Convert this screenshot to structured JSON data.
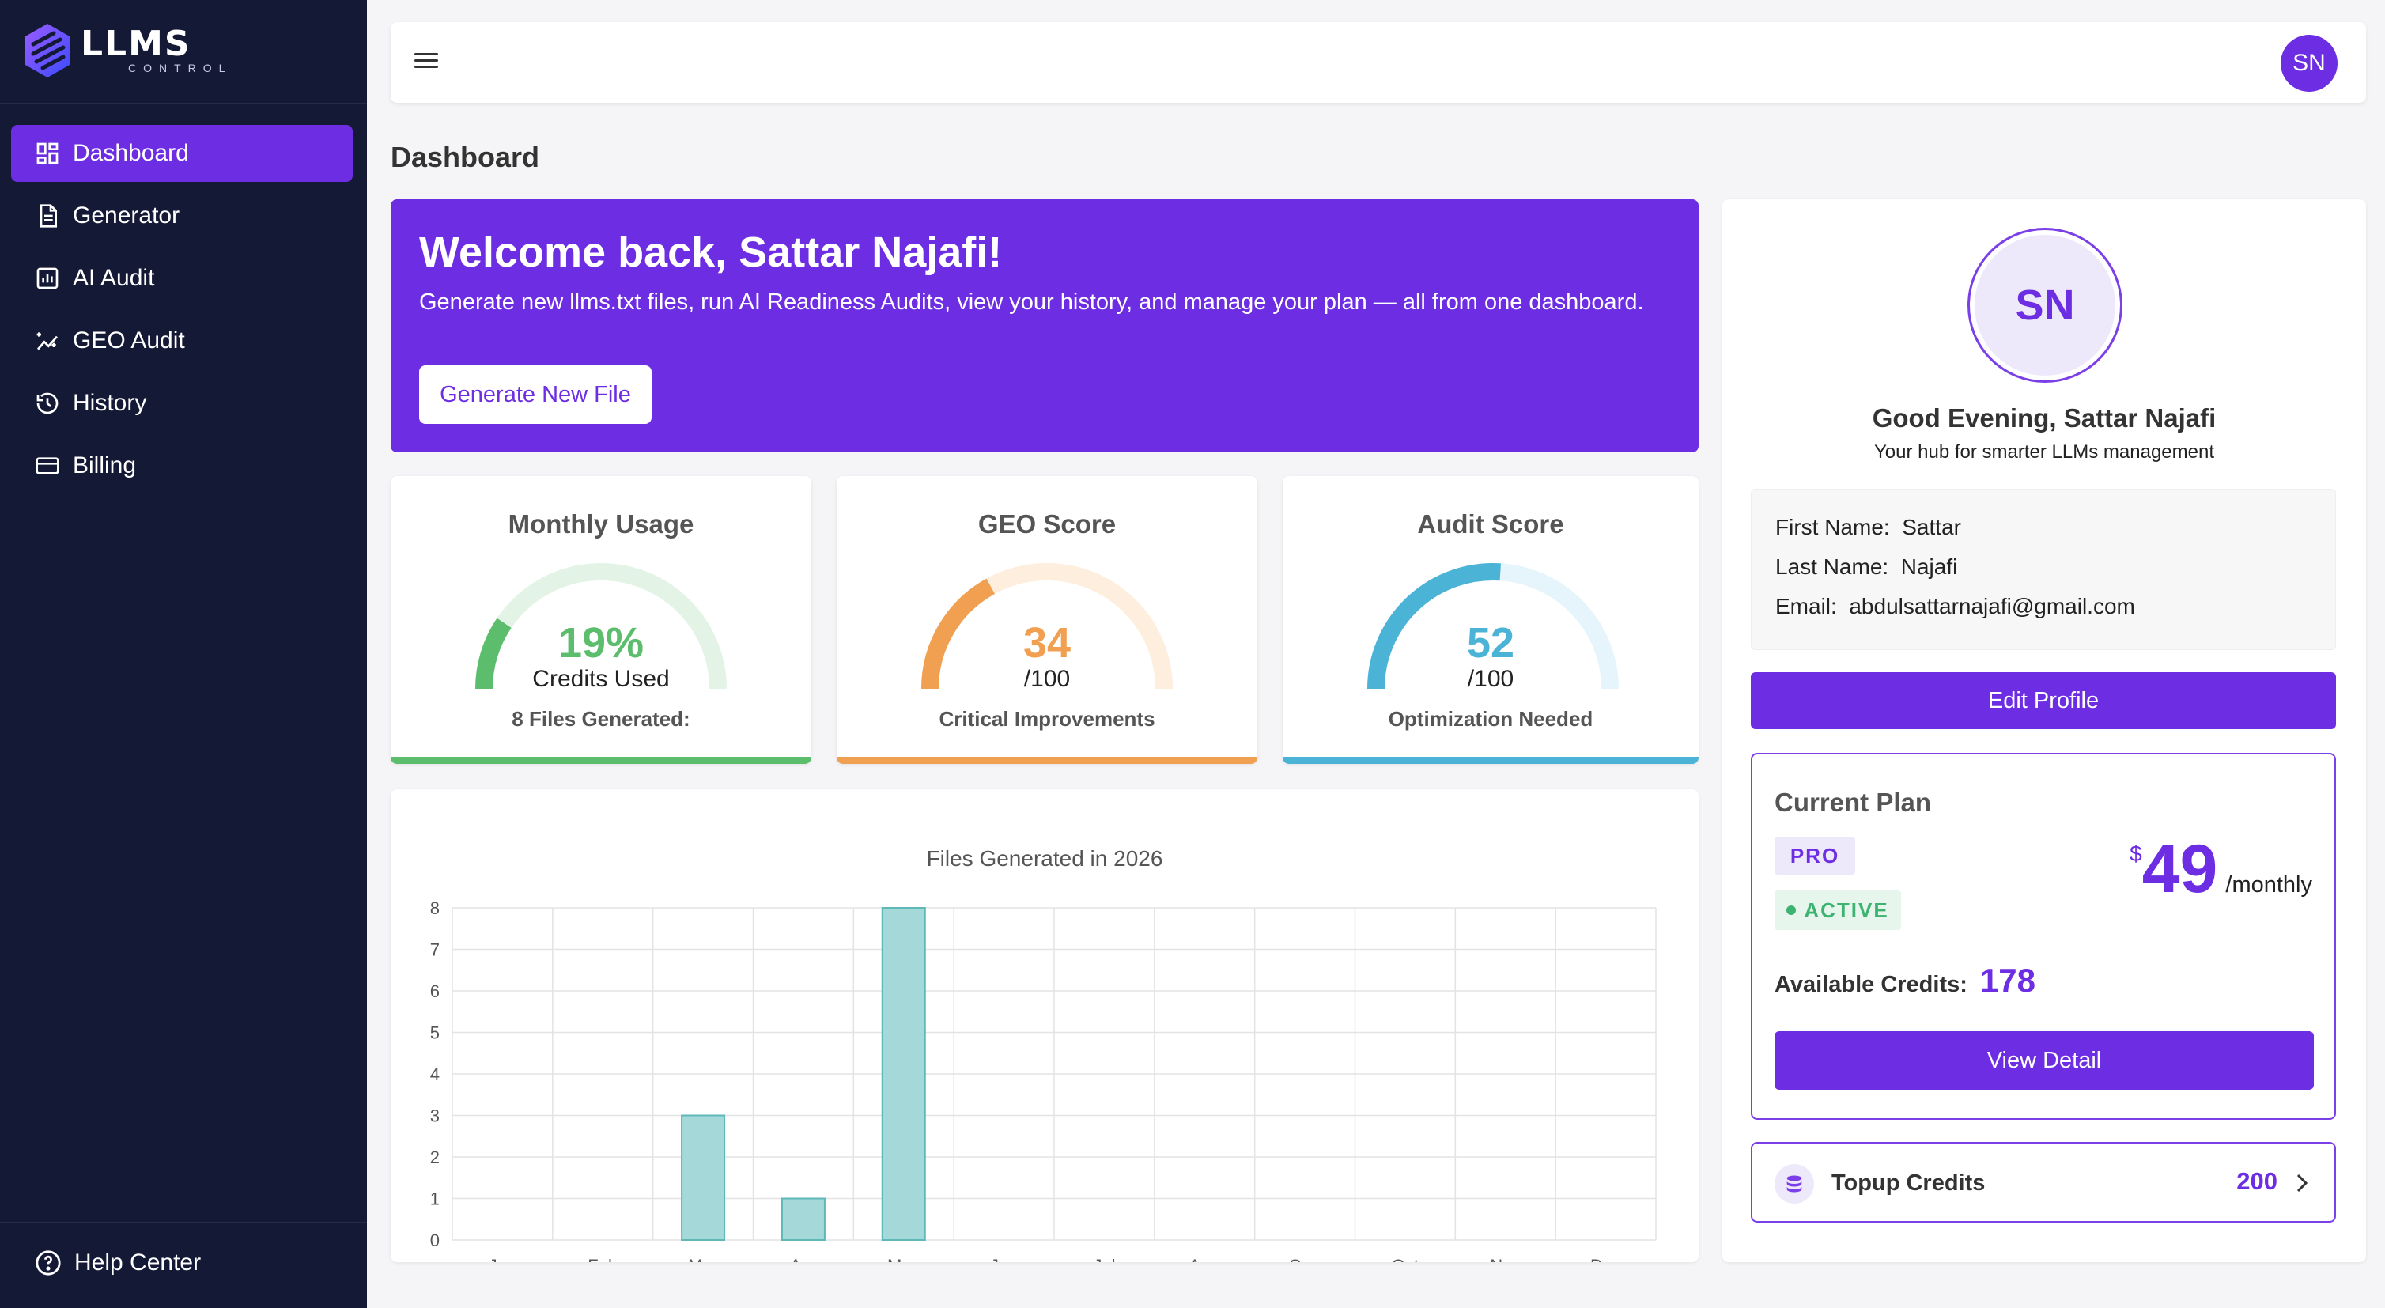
{
  "app": {
    "logo_title": "LLMS",
    "logo_subtitle": "CONTROL"
  },
  "sidebar": {
    "items": [
      {
        "label": "Dashboard",
        "icon": "dashboard-icon",
        "active": true
      },
      {
        "label": "Generator",
        "icon": "document-icon",
        "active": false
      },
      {
        "label": "AI Audit",
        "icon": "chart-icon",
        "active": false
      },
      {
        "label": "GEO Audit",
        "icon": "sparkle-chart-icon",
        "active": false
      },
      {
        "label": "History",
        "icon": "history-icon",
        "active": false
      },
      {
        "label": "Billing",
        "icon": "card-icon",
        "active": false
      }
    ],
    "help_label": "Help Center"
  },
  "topbar": {
    "avatar_initials": "SN"
  },
  "page": {
    "title": "Dashboard"
  },
  "welcome": {
    "heading": "Welcome back, Sattar Najafi!",
    "text": "Generate new llms.txt files, run AI Readiness Audits, view your history, and manage your plan — all from one dashboard.",
    "button": "Generate New File"
  },
  "scores": [
    {
      "title": "Monthly Usage",
      "value": "19%",
      "sub": "Credits Used",
      "foot": "8 Files Generated:",
      "percent": 19,
      "color": "#5cbd6c",
      "track": "#e3f4e6"
    },
    {
      "title": "GEO Score",
      "value": "34",
      "sub": "/100",
      "foot": "Critical Improvements",
      "percent": 34,
      "color": "#f0a050",
      "track": "#fdeede"
    },
    {
      "title": "Audit Score",
      "value": "52",
      "sub": "/100",
      "foot": "Optimization Needed",
      "percent": 52,
      "color": "#4ab3d6",
      "track": "#e6f5fb"
    }
  ],
  "chart_data": {
    "type": "bar",
    "title": "Files Generated in 2026",
    "categories": [
      "Jan",
      "Feb",
      "Mar",
      "Apr",
      "May",
      "Jun",
      "Jul",
      "Aug",
      "Sep",
      "Oct",
      "Nov",
      "Dec"
    ],
    "values": [
      0,
      0,
      3,
      1,
      8,
      0,
      0,
      0,
      0,
      0,
      0,
      0
    ],
    "ylim": [
      0,
      8
    ],
    "yticks": [
      "0",
      "1",
      "2",
      "3",
      "4",
      "5",
      "6",
      "7",
      "8"
    ],
    "bar_color": "#a5d8d8",
    "bar_border": "#5fb8b8",
    "grid": true
  },
  "profile": {
    "initials": "SN",
    "greeting": "Good Evening, Sattar Najafi",
    "tagline": "Your hub for smarter LLMs management",
    "first_name_label": "First Name:",
    "first_name": "Sattar",
    "last_name_label": "Last Name:",
    "last_name": "Najafi",
    "email_label": "Email:",
    "email": "abdulsattarnajafi@gmail.com",
    "edit_button": "Edit Profile"
  },
  "plan": {
    "title": "Current Plan",
    "tier": "PRO",
    "status": "ACTIVE",
    "currency": "$",
    "price": "49",
    "period": "/monthly",
    "credits_label": "Available Credits:",
    "credits": "178",
    "view_button": "View Detail"
  },
  "topup": {
    "label": "Topup Credits",
    "value": "200"
  },
  "colors": {
    "accent": "#6d2ee3",
    "sidebar_bg": "#141935"
  }
}
